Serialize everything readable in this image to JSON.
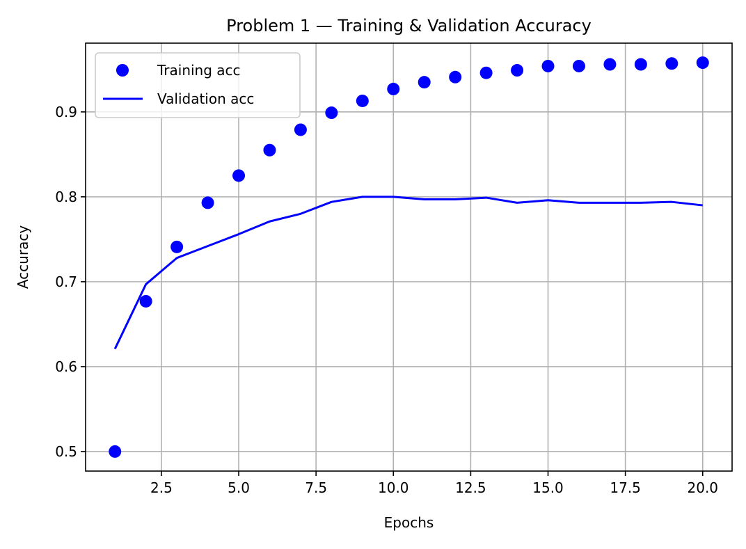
{
  "chart_data": {
    "type": "line",
    "title": "Problem 1 — Training & Validation Accuracy",
    "xlabel": "Epochs",
    "ylabel": "Accuracy",
    "xlim": [
      0.05,
      20.95
    ],
    "ylim": [
      0.477,
      0.981
    ],
    "xticks": [
      2.5,
      5.0,
      7.5,
      10.0,
      12.5,
      15.0,
      17.5,
      20.0
    ],
    "xtick_labels": [
      "2.5",
      "5.0",
      "7.5",
      "10.0",
      "12.5",
      "15.0",
      "17.5",
      "20.0"
    ],
    "yticks": [
      0.5,
      0.6,
      0.7,
      0.8,
      0.9
    ],
    "ytick_labels": [
      "0.5",
      "0.6",
      "0.7",
      "0.8",
      "0.9"
    ],
    "grid": true,
    "legend_position": "top-left",
    "x": [
      1,
      2,
      3,
      4,
      5,
      6,
      7,
      8,
      9,
      10,
      11,
      12,
      13,
      14,
      15,
      16,
      17,
      18,
      19,
      20
    ],
    "series": [
      {
        "name": "Training acc",
        "style": "markers",
        "color": "#0000ff",
        "values": [
          0.5,
          0.677,
          0.741,
          0.793,
          0.825,
          0.855,
          0.879,
          0.899,
          0.913,
          0.927,
          0.935,
          0.941,
          0.946,
          0.949,
          0.954,
          0.954,
          0.956,
          0.956,
          0.957,
          0.958
        ]
      },
      {
        "name": "Validation acc",
        "style": "line",
        "color": "#0000ff",
        "values": [
          0.621,
          0.697,
          0.728,
          0.742,
          0.756,
          0.771,
          0.78,
          0.794,
          0.8,
          0.8,
          0.797,
          0.797,
          0.799,
          0.793,
          0.796,
          0.793,
          0.793,
          0.793,
          0.794,
          0.79
        ]
      }
    ]
  }
}
